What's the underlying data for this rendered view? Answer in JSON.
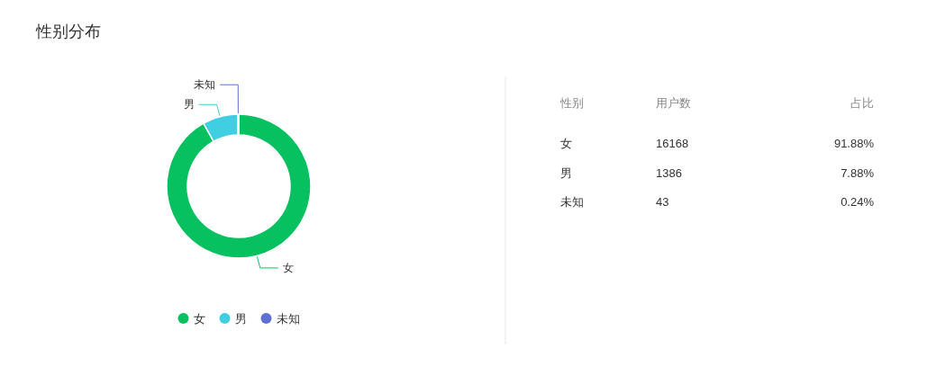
{
  "chart_data": [
    {
      "type": "donut",
      "title": "性别分布",
      "categories": [
        "女",
        "男",
        "未知"
      ],
      "values": [
        91.88,
        7.88,
        0.24
      ],
      "colors": [
        "#07c160",
        "#40cfe2",
        "#5f6fd4"
      ],
      "legend": "bottom"
    },
    {
      "type": "other",
      "categories": [
        "女",
        "男",
        "未知"
      ],
      "annotations": [
        "性别"
      ],
      "series": [
        {
          "name": "用户数",
          "values": [
            16168,
            1386,
            43
          ]
        },
        {
          "name": "占比",
          "values": [
            91.88,
            7.88,
            0.24
          ],
          "value_labels": [
            "91.88%",
            "7.88%",
            "0.24%"
          ]
        }
      ],
      "data_labels": true
    }
  ]
}
